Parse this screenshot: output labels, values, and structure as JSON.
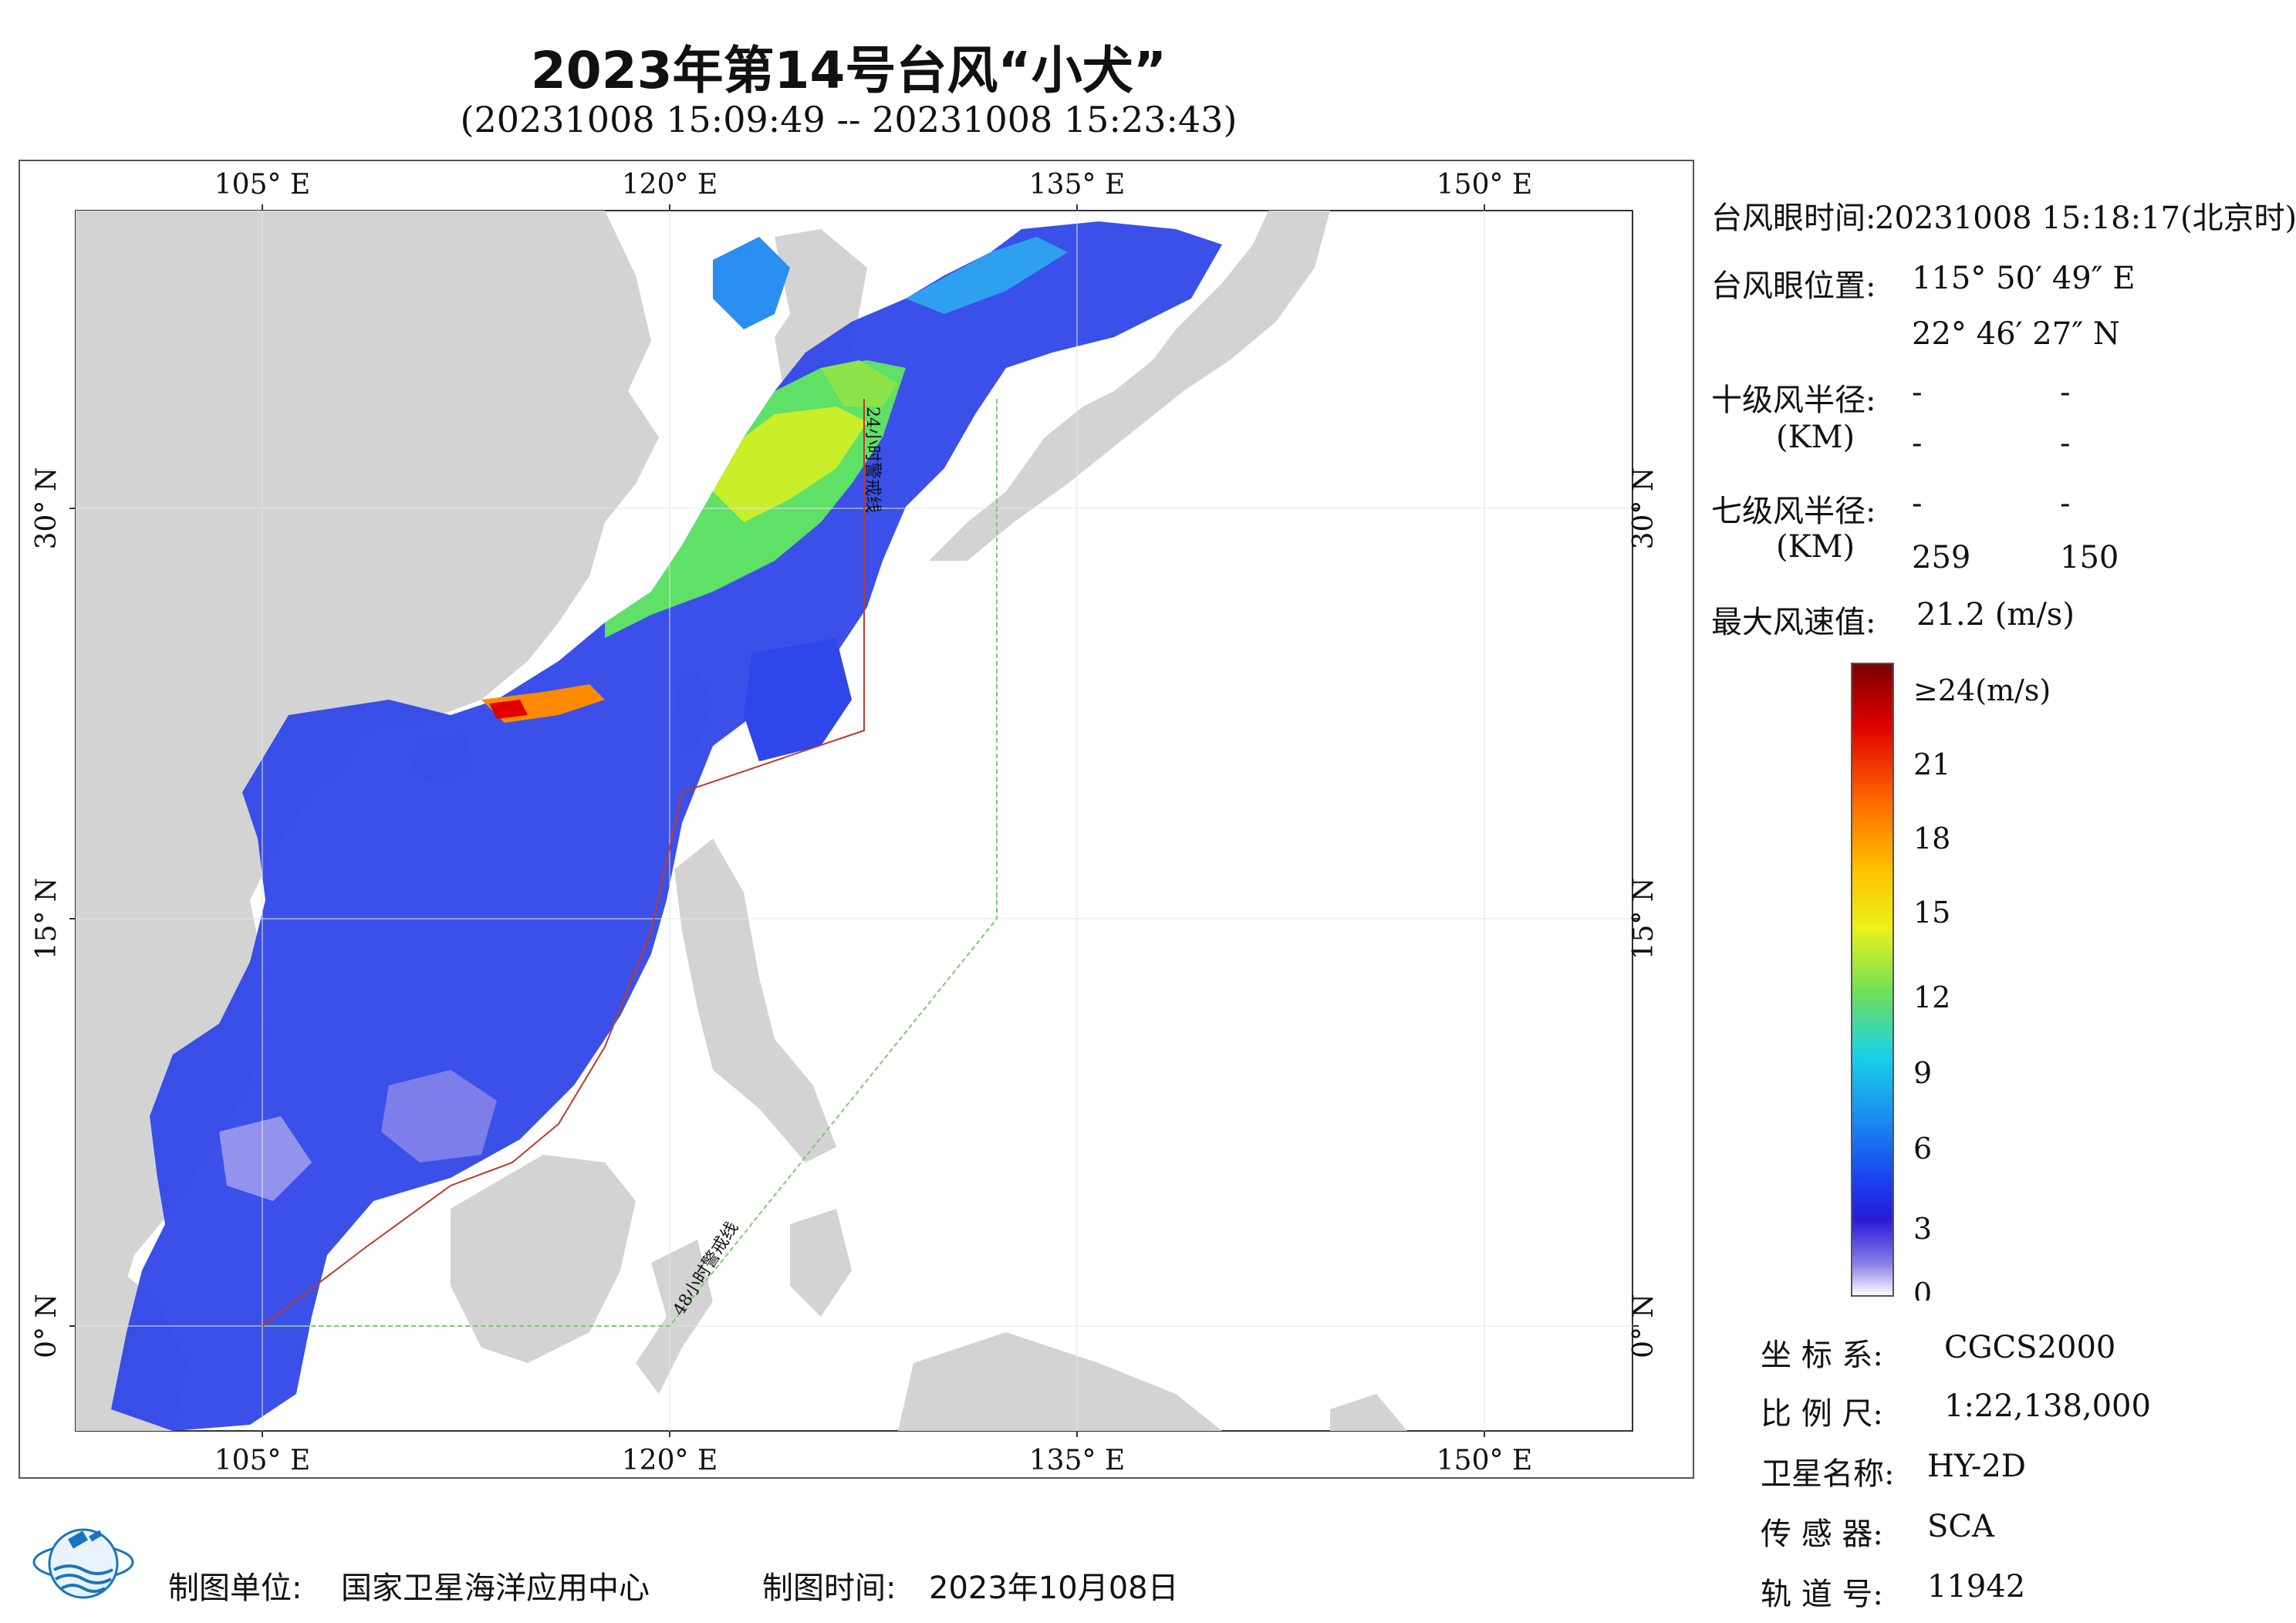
{
  "header": {
    "title": "2023年第14号台风“小犬”",
    "subtitle": "(20231008 15:09:49 -- 20231008 15:23:43)"
  },
  "map": {
    "lon_ticks": [
      "105° E",
      "120° E",
      "135° E",
      "150° E"
    ],
    "lat_ticks": [
      "30° N",
      "15° N",
      "0° N"
    ],
    "lines": {
      "warn24": "24小时警戒线",
      "warn48": "48小时警戒线"
    },
    "colors": {
      "land": "#d3d3d3",
      "sea": "#ffffff",
      "warn24_line": "#c0392b",
      "warn48_line": "#7bc96f"
    }
  },
  "info": {
    "eye_time_label": "台风眼时间:",
    "eye_time_value": "20231008 15:18:17(北京时)",
    "eye_pos_label": "台风眼位置:",
    "eye_lon": "115° 50′ 49″ E",
    "eye_lat": "22° 46′ 27″ N",
    "r10_label": "十级风半径:",
    "km_label": "(KM)",
    "r10_a": "-",
    "r10_b": "-",
    "r10_c": "-",
    "r10_d": "-",
    "r7_label": "七级风半径:",
    "r7_a": "-",
    "r7_b": "-",
    "r7_c": "259",
    "r7_d": "150",
    "max_wind_label": "最大风速值:",
    "max_wind_value": "21.2 (m/s)"
  },
  "colorbar": {
    "labels": [
      "≥24(m/s)",
      "21",
      "18",
      "15",
      "12",
      "9",
      "6",
      "3",
      "0"
    ],
    "stops": [
      "#7a0000",
      "#e00000",
      "#ff6a00",
      "#ffc400",
      "#e8f21a",
      "#6fe05a",
      "#1ad1e6",
      "#1a8cf0",
      "#1a3ef0",
      "#2a1ad8",
      "#8a80e8",
      "#ffffff"
    ]
  },
  "meta": {
    "crs_label": "坐 标 系:",
    "crs_value": "CGCS2000",
    "scale_label": "比 例 尺:",
    "scale_value": "1:22,138,000",
    "satellite_label": "卫星名称:",
    "satellite_value": "HY-2D",
    "sensor_label": "传 感 器:",
    "sensor_value": "SCA",
    "orbit_label": "轨 道 号:",
    "orbit_value": "11942"
  },
  "footer": {
    "unit_label": "制图单位:",
    "unit_value": "国家卫星海洋应用中心",
    "time_label": "制图时间:",
    "time_value": "2023年10月08日"
  }
}
